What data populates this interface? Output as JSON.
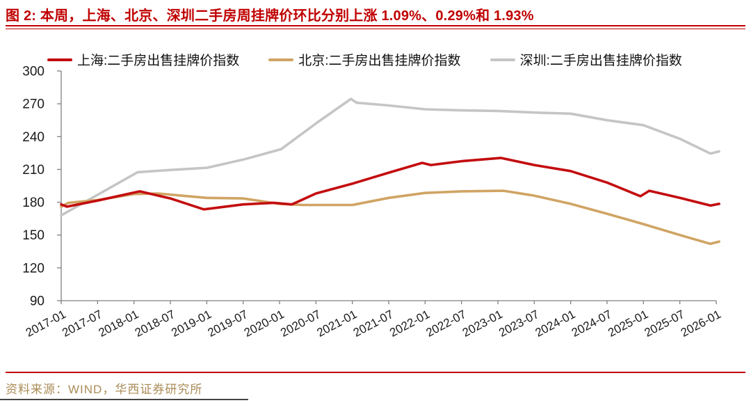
{
  "title": {
    "text": "图 2: 本周，上海、北京、深圳二手房周挂牌价环比分别上涨 1.09%、0.29%和 1.93%"
  },
  "source_note": "资料来源：WIND，华西证券研究所",
  "colors": {
    "title_red": "#c00000",
    "shanghai_line": "#c30d0f",
    "beijing_line": "#d0a464",
    "shenzhen_line": "#c5c5c5",
    "source_text": "#ab8b57",
    "axis": "#808080",
    "tick_text": "#1a1a1a"
  },
  "chart_data": {
    "type": "line",
    "title": "本周，上海、北京、深圳二手房周挂牌价环比分别上涨 1.09%、0.29%和 1.93%",
    "grid": false,
    "legend_position": "top",
    "x_axis": {
      "min": 2017.0,
      "max": 2026.0,
      "tick_labels": [
        "2017-01",
        "2017-07",
        "2018-01",
        "2018-07",
        "2019-01",
        "2019-07",
        "2020-01",
        "2020-07",
        "2021-01",
        "2021-07",
        "2022-01",
        "2022-07",
        "2023-01",
        "2023-07",
        "2024-01",
        "2024-07",
        "2025-01",
        "2025-07",
        "2026-01"
      ]
    },
    "y_axis": {
      "min": 90,
      "max": 300,
      "ticks": [
        90,
        120,
        150,
        180,
        210,
        240,
        270,
        300
      ]
    },
    "series": [
      {
        "name": "上海:二手房出售挂牌价指数",
        "color": "#c30d0f",
        "points": [
          [
            2017.0,
            178
          ],
          [
            2017.08,
            176
          ],
          [
            2017.5,
            181.5
          ],
          [
            2018.08,
            190
          ],
          [
            2018.5,
            183.5
          ],
          [
            2018.96,
            173.5
          ],
          [
            2019.5,
            178
          ],
          [
            2019.92,
            179.5
          ],
          [
            2020.17,
            178
          ],
          [
            2020.5,
            188
          ],
          [
            2021.0,
            197
          ],
          [
            2021.5,
            207
          ],
          [
            2021.96,
            216
          ],
          [
            2022.08,
            214
          ],
          [
            2022.5,
            217.5
          ],
          [
            2023.04,
            220.5
          ],
          [
            2023.5,
            214
          ],
          [
            2024.0,
            208.5
          ],
          [
            2024.5,
            198
          ],
          [
            2024.96,
            185.5
          ],
          [
            2025.08,
            190.5
          ],
          [
            2025.5,
            184
          ],
          [
            2025.92,
            177
          ],
          [
            2026.04,
            178.5
          ]
        ]
      },
      {
        "name": "北京:二手房出售挂牌价指数",
        "color": "#d0a464",
        "points": [
          [
            2017.0,
            176
          ],
          [
            2017.1,
            179.5
          ],
          [
            2017.5,
            182
          ],
          [
            2018.0,
            187.5
          ],
          [
            2018.33,
            188
          ],
          [
            2019.0,
            184
          ],
          [
            2019.5,
            183.5
          ],
          [
            2020.0,
            178.5
          ],
          [
            2020.33,
            177.5
          ],
          [
            2021.0,
            177.5
          ],
          [
            2021.5,
            184
          ],
          [
            2022.0,
            188.5
          ],
          [
            2022.5,
            190
          ],
          [
            2023.08,
            190.5
          ],
          [
            2023.5,
            186
          ],
          [
            2024.0,
            178.5
          ],
          [
            2024.5,
            169.5
          ],
          [
            2025.0,
            160
          ],
          [
            2025.5,
            150
          ],
          [
            2025.92,
            142
          ],
          [
            2026.04,
            144
          ]
        ]
      },
      {
        "name": "深圳:二手房出售挂牌价指数",
        "color": "#c5c5c5",
        "points": [
          [
            2017.0,
            168
          ],
          [
            2018.05,
            207.5
          ],
          [
            2018.5,
            209.5
          ],
          [
            2019.0,
            211.5
          ],
          [
            2019.5,
            219
          ],
          [
            2020.02,
            228.5
          ],
          [
            2020.5,
            252
          ],
          [
            2020.98,
            274.5
          ],
          [
            2021.06,
            271
          ],
          [
            2021.5,
            268.5
          ],
          [
            2022.0,
            265
          ],
          [
            2022.5,
            264
          ],
          [
            2023.0,
            263.5
          ],
          [
            2023.5,
            262
          ],
          [
            2024.0,
            261
          ],
          [
            2024.5,
            255
          ],
          [
            2025.0,
            250.5
          ],
          [
            2025.5,
            238
          ],
          [
            2025.92,
            224.5
          ],
          [
            2026.04,
            226.5
          ]
        ]
      }
    ]
  }
}
